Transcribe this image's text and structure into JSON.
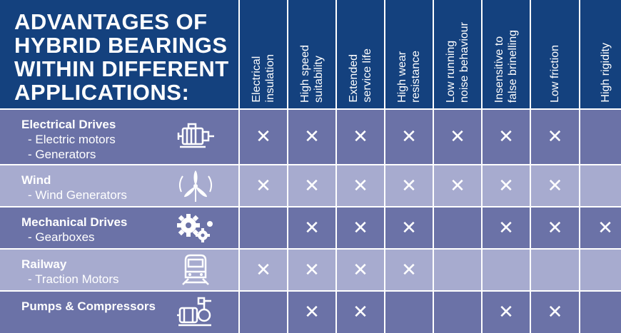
{
  "title_lines": [
    "ADVANTAGES OF",
    "HYBRID BEARINGS",
    "WITHIN DIFFERENT",
    "APPLICATIONS:"
  ],
  "columns": [
    "Electrical\ninsulation",
    "High speed\nsuitability",
    "Extended\nservice life",
    "High wear\nresistance",
    "Low running\nnoise behaviour",
    "Insensitive to\nfalse brinelling",
    "Low friction",
    "High rigidity"
  ],
  "mark_symbol": "✕",
  "colors": {
    "header": "#14417e",
    "row_dark": "#6b72a7",
    "row_light": "#a7abcf",
    "text": "#ffffff"
  },
  "rows": [
    {
      "name": "Electrical Drives",
      "subs": [
        "- Electric motors",
        "- Generators"
      ],
      "icon": "electric-motor-icon",
      "marks": [
        true,
        true,
        true,
        true,
        true,
        true,
        true,
        false
      ]
    },
    {
      "name": "Wind",
      "subs": [
        "- Wind Generators"
      ],
      "icon": "wind-turbine-icon",
      "marks": [
        true,
        true,
        true,
        true,
        true,
        true,
        true,
        false
      ]
    },
    {
      "name": "Mechanical Drives",
      "subs": [
        "- Gearboxes"
      ],
      "icon": "gears-icon",
      "marks": [
        false,
        true,
        true,
        true,
        false,
        true,
        true,
        true
      ]
    },
    {
      "name": "Railway",
      "subs": [
        "- Traction Motors"
      ],
      "icon": "train-icon",
      "marks": [
        true,
        true,
        true,
        true,
        false,
        false,
        false,
        false
      ]
    },
    {
      "name": "Pumps & Compressors",
      "subs": [],
      "icon": "pump-icon",
      "marks": [
        false,
        true,
        true,
        false,
        false,
        true,
        true,
        false
      ]
    }
  ]
}
